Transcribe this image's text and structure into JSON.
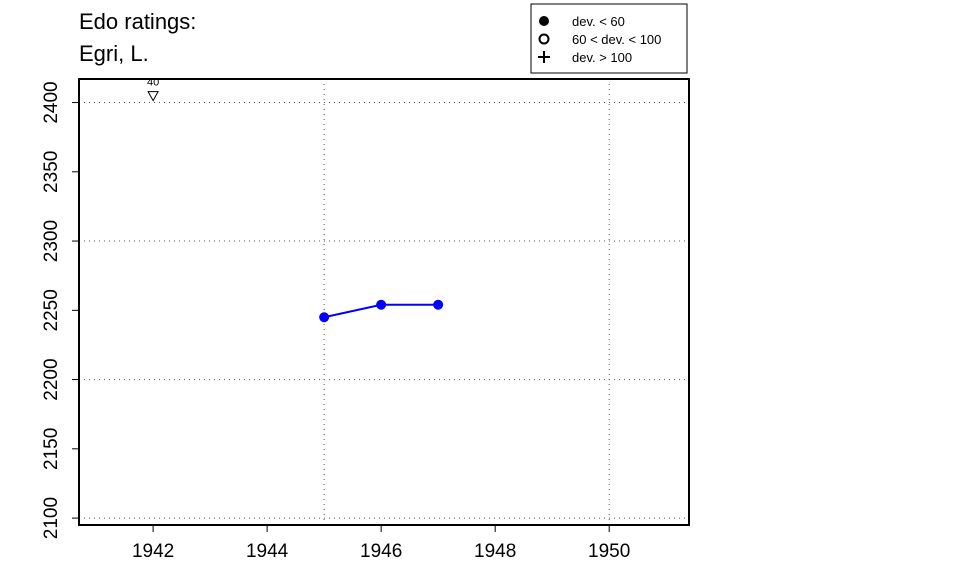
{
  "title_lines": [
    "Edo ratings:",
    "Egri, L."
  ],
  "chart_data": {
    "type": "line",
    "x_ticks": [
      1942,
      1944,
      1946,
      1948,
      1950
    ],
    "y_ticks": [
      2100,
      2150,
      2200,
      2250,
      2300,
      2350,
      2400
    ],
    "xlim": [
      1940.7,
      1951.4
    ],
    "ylim": [
      2095,
      2417
    ],
    "grid": true,
    "grid_x": [
      1945,
      1950
    ],
    "grid_y": [
      2100,
      2200,
      2300,
      2400
    ],
    "series": [
      {
        "color": "#0000ff",
        "marker": "filled-circle",
        "points": [
          {
            "x": 1945,
            "y": 2245
          },
          {
            "x": 1946,
            "y": 2254
          },
          {
            "x": 1947,
            "y": 2254
          }
        ]
      }
    ],
    "annotations": [
      {
        "x": 1942,
        "y": 2405,
        "label": "40",
        "marker": "down-triangle"
      }
    ],
    "legend": {
      "position": "top-right",
      "entries": [
        {
          "marker": "filled-circle",
          "label": "dev. < 60"
        },
        {
          "marker": "open-circle",
          "label": "60 < dev. < 100"
        },
        {
          "marker": "plus",
          "label": "dev. > 100"
        }
      ]
    }
  }
}
